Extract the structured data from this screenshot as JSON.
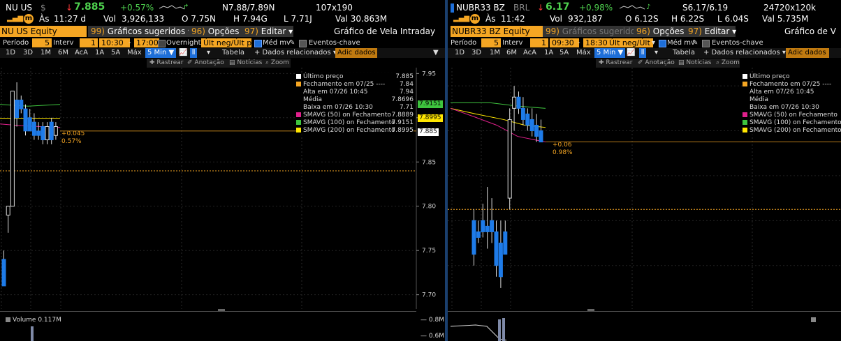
{
  "left": {
    "ticker": "NU US",
    "currency": "$",
    "last_price": "7.885",
    "change_pct": "+0.57%",
    "quote": "N7.88/7.89N",
    "size": "107x190",
    "time_label": "Às",
    "time": "11:27 d",
    "volume_label": "Vol",
    "volume": "3,926,133",
    "open": "O 7.75N",
    "high": "H 7.94G",
    "low": "L 7.71J",
    "value": "Val  30.863M",
    "security": "NU US Equity",
    "menu_suggested": "Gráficos sugeridos",
    "menu_suggested_num": "99)",
    "menu_options": "Opções",
    "menu_options_num": "96)",
    "menu_edit": "Editar",
    "menu_edit_num": "97)",
    "chart_title": "Gráfico de Vela Intraday",
    "period_label": "Período",
    "period": "5",
    "interval_label": "Interv",
    "interval": "1",
    "time_start": "10:30",
    "time_end": "17:00",
    "overnight": "Overnight",
    "last_trade": "Últ neg/Últ pr",
    "avg_label": "Méd mv",
    "events": "Eventos-chave",
    "ranges": [
      "1D",
      "3D",
      "1M",
      "6M",
      "AcA",
      "1A",
      "5A",
      "Máx"
    ],
    "selected_range": "5 Min",
    "table": "Tabela",
    "related": "+ Dados relacionados",
    "add_data": "Adic dados",
    "tools": [
      "Rastrear",
      "Anotação",
      "Notícias",
      "Zoom"
    ],
    "legend": [
      {
        "label": "Último preço",
        "value": "7.885",
        "color": "#ffffff"
      },
      {
        "label": "Fechamento em 07/25 ----",
        "value": "7.84",
        "color": "#f5a623"
      },
      {
        "label": "Alta em 07/26 10:45",
        "value": "7.94",
        "color": ""
      },
      {
        "label": "Média",
        "value": "7.8696",
        "color": ""
      },
      {
        "label": "Baixa em 07/26 10:30",
        "value": "7.71",
        "color": ""
      },
      {
        "label": "SMAVG (50)  on Fechamento",
        "value": "7.8889",
        "color": "#e0208c"
      },
      {
        "label": "SMAVG (100)  on Fechamento",
        "value": "7.9151",
        "color": "#3ec43e"
      },
      {
        "label": "SMAVG (200)  on Fechamento",
        "value": "7.8995",
        "color": "#ffe600"
      }
    ],
    "change_abs_tag": "+0.045",
    "change_pct_tag": "0.57%",
    "price_tags": {
      "sma100": "7.9151",
      "sma200": "7.8995",
      "last": "7.885"
    },
    "yaxis": [
      "7.95",
      "7.90",
      "7.85",
      "7.80",
      "7.75",
      "7.70"
    ],
    "volume_label2": "Volume  0.117M",
    "vol_axis": [
      "0.8M",
      "0.6M"
    ]
  },
  "right": {
    "ticker": "NUBR33 BZ",
    "currency": "BRL",
    "last_price": "6.17",
    "change_pct": "+0.98%",
    "quote": "S6.17/6.19",
    "size": "24720x120k",
    "time_label": "Às",
    "time": "11:42",
    "volume_label": "Vol",
    "volume": "932,187",
    "open": "O 6.12S",
    "high": "H 6.22S",
    "low": "L 6.04S",
    "value": "Val  5.735M",
    "security": "NUBR33 BZ Equity",
    "menu_suggested": "Gráficos sugeridos",
    "menu_suggested_num": "99)",
    "menu_options": "Opções",
    "menu_options_num": "96)",
    "menu_edit": "Editar",
    "menu_edit_num": "97)",
    "chart_title": "Gráfico de V",
    "period_label": "Período",
    "period": "5",
    "interval_label": "Interv",
    "interval": "1",
    "time_start": "09:30",
    "time_end": "18:30",
    "last_trade": "Últ neg/Últ pr",
    "avg_label": "Méd mv",
    "events": "Eventos-chave",
    "ranges": [
      "1D",
      "3D",
      "1M",
      "6M",
      "AcA",
      "1A",
      "5A",
      "Máx"
    ],
    "selected_range": "5 Min",
    "table": "Tabela",
    "related": "+ Dados relacionados",
    "add_data": "Adic dados",
    "tools": [
      "Rastrear",
      "Anotação",
      "Notícias",
      "Zoom"
    ],
    "legend": [
      {
        "label": "Último preço",
        "color": "#ffffff"
      },
      {
        "label": "Fechamento em 07/25 ----",
        "color": "#f5a623"
      },
      {
        "label": "Alta em 07/26 10:45",
        "color": ""
      },
      {
        "label": "Média",
        "color": ""
      },
      {
        "label": "Baixa em 07/26 10:30",
        "color": ""
      },
      {
        "label": "SMAVG (50)  on Fechamento",
        "color": "#e0208c"
      },
      {
        "label": "SMAVG (100)  on Fechamento",
        "color": "#3ec43e"
      },
      {
        "label": "SMAVG (200)  on Fechamento",
        "color": "#ffe600"
      }
    ],
    "change_abs_tag": "+0.06",
    "change_pct_tag": "0.98%"
  },
  "colors": {
    "accent": "#f5a623",
    "up": "#4fd34f",
    "down": "#ff3b3b",
    "candle_down": "#1e7be8",
    "sma50": "#e0208c",
    "sma100": "#3ec43e",
    "sma200": "#ffe600"
  },
  "chart_data": [
    {
      "type": "candlestick",
      "series": [
        {
          "name": "NU US Equity",
          "candles": [
            {
              "o": 7.74,
              "h": 7.75,
              "l": 7.71,
              "c": 7.71
            },
            {
              "o": 7.79,
              "h": 7.8,
              "l": 7.77,
              "c": 7.8
            },
            {
              "o": 7.8,
              "h": 7.93,
              "l": 7.8,
              "c": 7.93
            },
            {
              "o": 7.92,
              "h": 7.94,
              "l": 7.89,
              "c": 7.9
            },
            {
              "o": 7.92,
              "h": 7.925,
              "l": 7.905,
              "c": 7.91
            },
            {
              "o": 7.91,
              "h": 7.915,
              "l": 7.88,
              "c": 7.885
            },
            {
              "o": 7.9,
              "h": 7.91,
              "l": 7.885,
              "c": 7.885
            },
            {
              "o": 7.895,
              "h": 7.905,
              "l": 7.875,
              "c": 7.88
            },
            {
              "o": 7.885,
              "h": 7.895,
              "l": 7.875,
              "c": 7.88
            },
            {
              "o": 7.89,
              "h": 7.895,
              "l": 7.87,
              "c": 7.875
            },
            {
              "o": 7.875,
              "h": 7.895,
              "l": 7.87,
              "c": 7.89
            },
            {
              "o": 7.895,
              "h": 7.9,
              "l": 7.87,
              "c": 7.875
            },
            {
              "o": 7.88,
              "h": 7.895,
              "l": 7.875,
              "c": 7.89
            }
          ]
        },
        {
          "name": "NUBR33 BZ Equity",
          "candles": [
            {
              "o": 6.1,
              "h": 6.11,
              "l": 6.06,
              "c": 6.07
            },
            {
              "o": 6.09,
              "h": 6.1,
              "l": 6.08,
              "c": 6.085
            },
            {
              "o": 6.1,
              "h": 6.115,
              "l": 6.085,
              "c": 6.09
            },
            {
              "o": 6.095,
              "h": 6.13,
              "l": 6.075,
              "c": 6.09
            },
            {
              "o": 6.1,
              "h": 6.12,
              "l": 6.08,
              "c": 6.09
            },
            {
              "o": 6.09,
              "h": 6.1,
              "l": 6.05,
              "c": 6.06
            },
            {
              "o": 6.08,
              "h": 6.1,
              "l": 6.04,
              "c": 6.05
            },
            {
              "o": 6.09,
              "h": 6.1,
              "l": 6.07,
              "c": 6.07
            },
            {
              "o": 6.12,
              "h": 6.2,
              "l": 6.11,
              "c": 6.19
            },
            {
              "o": 6.2,
              "h": 6.22,
              "l": 6.18,
              "c": 6.21
            },
            {
              "o": 6.21,
              "h": 6.215,
              "l": 6.195,
              "c": 6.2
            },
            {
              "o": 6.2,
              "h": 6.21,
              "l": 6.185,
              "c": 6.19
            },
            {
              "o": 6.195,
              "h": 6.2,
              "l": 6.18,
              "c": 6.185
            },
            {
              "o": 6.19,
              "h": 6.2,
              "l": 6.175,
              "c": 6.18
            },
            {
              "o": 6.185,
              "h": 6.195,
              "l": 6.17,
              "c": 6.175
            },
            {
              "o": 6.18,
              "h": 6.19,
              "l": 6.17,
              "c": 6.17
            }
          ]
        }
      ],
      "yaxis_left": {
        "ylim": [
          7.695,
          7.955
        ],
        "ticks": [
          7.7,
          7.75,
          7.8,
          7.85,
          7.9,
          7.95
        ]
      },
      "prev_close_left": 7.84,
      "last_left": 7.885,
      "ylim_right": [
        6.03,
        6.235
      ],
      "prev_close_right": 6.11,
      "last_right": 6.17
    }
  ]
}
